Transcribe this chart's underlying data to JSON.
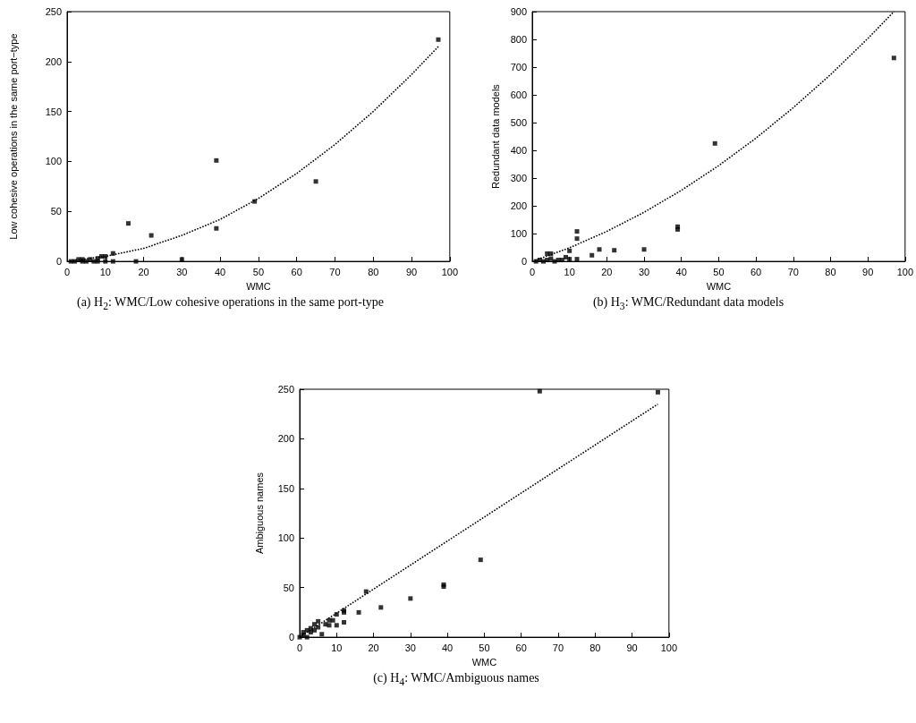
{
  "chart_data": [
    {
      "type": "scatter",
      "xlabel": "WMC",
      "ylabel": "Low cohesive operations in the same port−type",
      "annotations": [
        "(a) H$_{2}$: WMC/Low cohesive operations in the same port-type"
      ],
      "marker": "square",
      "xlim": [
        0,
        100
      ],
      "xticks": [
        0,
        10,
        20,
        30,
        40,
        50,
        60,
        70,
        80,
        90,
        100
      ],
      "ylim": [
        0,
        250
      ],
      "yticks": [
        0,
        50,
        100,
        150,
        200,
        250
      ],
      "series": [
        {
          "color": "#000000",
          "x": [
            1,
            2,
            3,
            4,
            4,
            5,
            6,
            7,
            8,
            8,
            9,
            10,
            10,
            12,
            12,
            16,
            18,
            22,
            30,
            39,
            39,
            49,
            65,
            97
          ],
          "values": [
            0,
            0,
            2,
            2,
            0,
            0,
            2,
            0,
            3,
            0,
            5,
            5,
            0,
            8,
            0,
            38,
            0,
            26,
            2,
            101,
            33,
            60,
            80,
            222
          ]
        },
        {
          "type": "line",
          "color": "#000000",
          "line_style": "dotted",
          "marker": "none",
          "x": [
            0,
            10,
            20,
            30,
            40,
            50,
            60,
            70,
            80,
            90,
            97
          ],
          "values": [
            0,
            5,
            13,
            26,
            42,
            63,
            88,
            117,
            150,
            187,
            215
          ]
        }
      ]
    },
    {
      "type": "scatter",
      "xlabel": "WMC",
      "ylabel": "Redundant data models",
      "annotations": [
        "(b) H$_{3}$: WMC/Redundant data models"
      ],
      "marker": "square",
      "xlim": [
        0,
        100
      ],
      "xticks": [
        0,
        10,
        20,
        30,
        40,
        50,
        60,
        70,
        80,
        90,
        100
      ],
      "ylim": [
        0,
        900
      ],
      "yticks": [
        0,
        100,
        200,
        300,
        400,
        500,
        600,
        700,
        800,
        900
      ],
      "series": [
        {
          "color": "#000000",
          "x": [
            1,
            2,
            3,
            4,
            4,
            5,
            5,
            6,
            7,
            8,
            9,
            10,
            10,
            12,
            12,
            12,
            16,
            18,
            22,
            30,
            39,
            39,
            49,
            97
          ],
          "values": [
            0,
            5,
            0,
            5,
            28,
            28,
            10,
            0,
            5,
            5,
            15,
            38,
            8,
            108,
            82,
            8,
            22,
            43,
            40,
            43,
            125,
            115,
            425,
            733
          ]
        },
        {
          "type": "line",
          "color": "#000000",
          "line_style": "dotted",
          "marker": "none",
          "x": [
            0,
            10,
            20,
            30,
            40,
            50,
            60,
            70,
            80,
            90,
            97
          ],
          "values": [
            0,
            49,
            108,
            177,
            256,
            345,
            444,
            554,
            673,
            803,
            900
          ]
        }
      ]
    },
    {
      "type": "scatter",
      "xlabel": "WMC",
      "ylabel": "Ambiguous names",
      "annotations": [
        "(c) H$_{4}$: WMC/Ambiguous names"
      ],
      "marker": "square",
      "xlim": [
        0,
        100
      ],
      "xticks": [
        0,
        10,
        20,
        30,
        40,
        50,
        60,
        70,
        80,
        90,
        100
      ],
      "ylim": [
        0,
        250
      ],
      "yticks": [
        0,
        50,
        100,
        150,
        200,
        250
      ],
      "series": [
        {
          "color": "#000000",
          "x": [
            0,
            1,
            1,
            2,
            2,
            3,
            3,
            4,
            4,
            5,
            5,
            6,
            7,
            8,
            8,
            9,
            10,
            10,
            12,
            12,
            12,
            16,
            18,
            22,
            30,
            39,
            39,
            49,
            65,
            97
          ],
          "values": [
            0,
            2,
            5,
            0,
            7,
            5,
            9,
            7,
            13,
            10,
            16,
            3,
            13,
            12,
            17,
            17,
            12,
            23,
            15,
            25,
            27,
            25,
            46,
            30,
            39,
            51,
            53,
            78,
            248,
            247
          ]
        },
        {
          "type": "line",
          "color": "#000000",
          "line_style": "dotted",
          "marker": "none",
          "x": [
            0,
            97
          ],
          "values": [
            0,
            235
          ]
        }
      ]
    }
  ]
}
